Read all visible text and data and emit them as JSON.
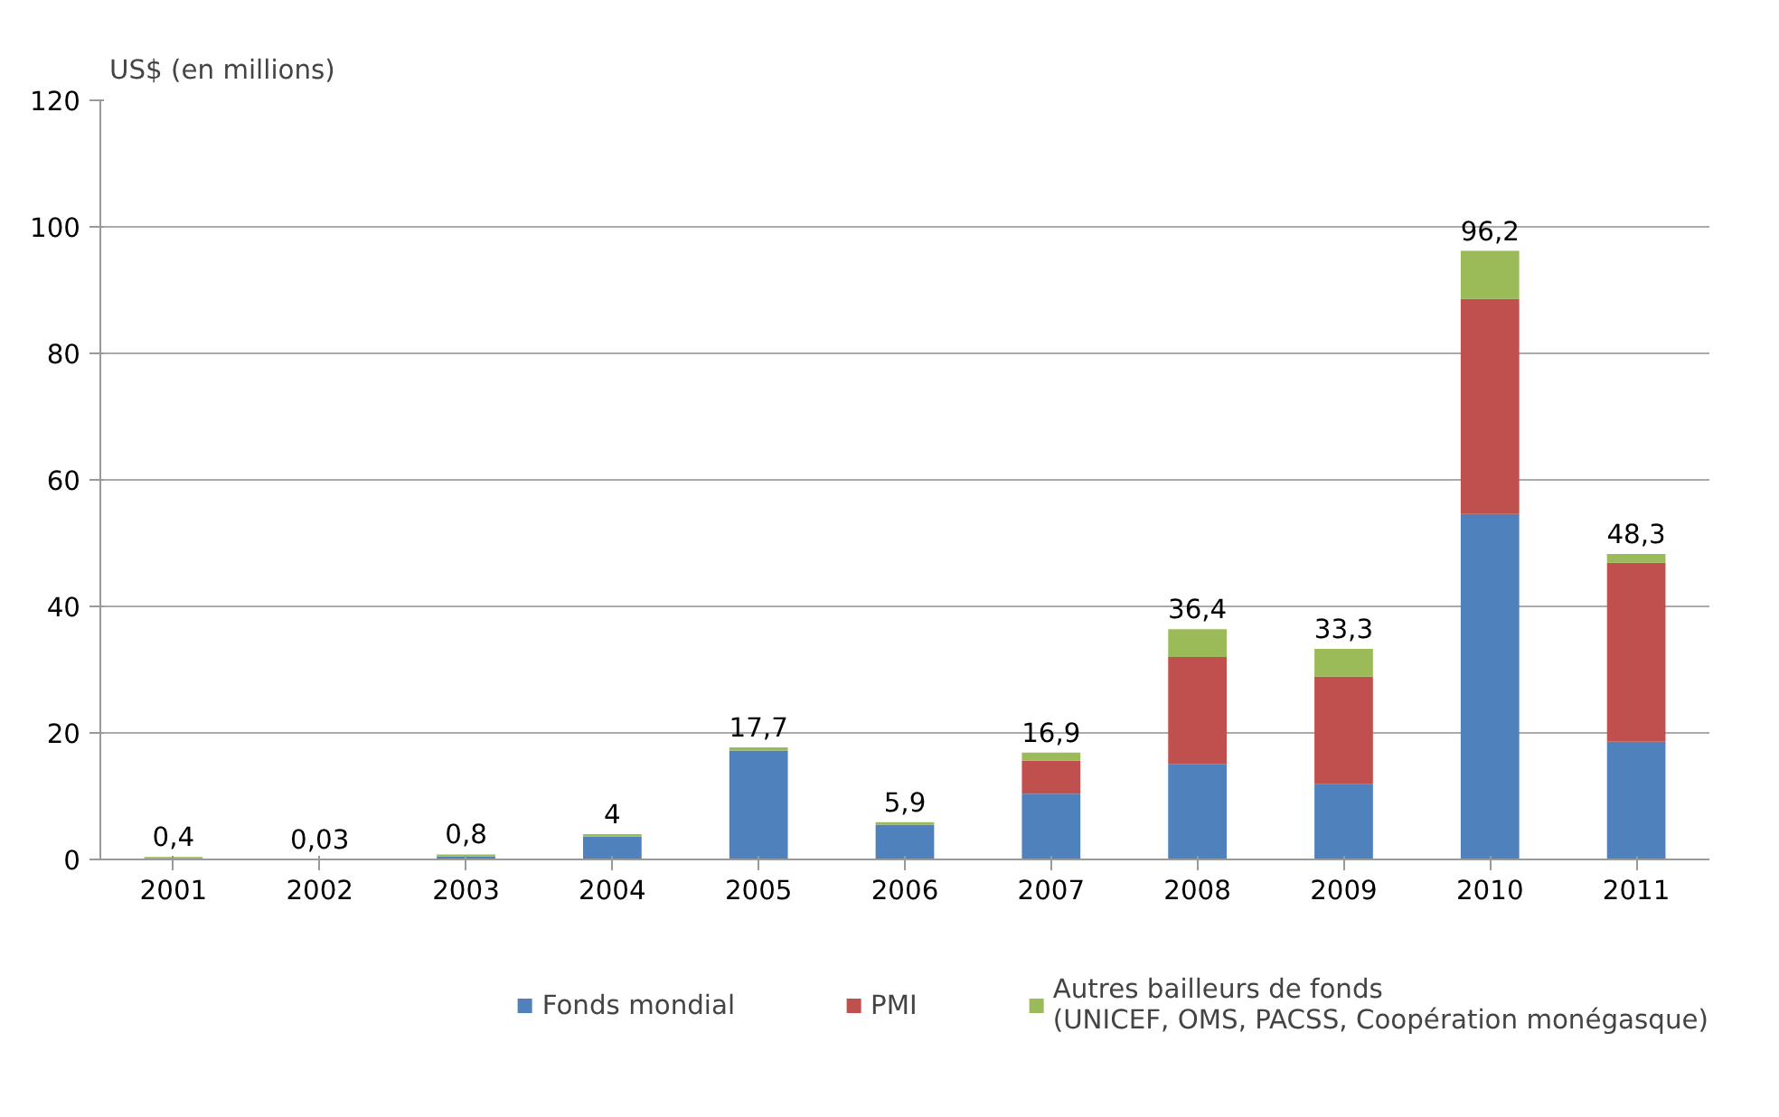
{
  "chart_data": {
    "type": "bar",
    "stacked": true,
    "ylabel": "US$ (en millions)",
    "categories": [
      "2001",
      "2002",
      "2003",
      "2004",
      "2005",
      "2006",
      "2007",
      "2008",
      "2009",
      "2010",
      "2011"
    ],
    "series": [
      {
        "name": "Fonds mondial",
        "color": "#4f81bd",
        "values": [
          0,
          0,
          0.5,
          3.6,
          17.2,
          5.5,
          10.4,
          15.1,
          11.9,
          54.6,
          18.6
        ]
      },
      {
        "name": "PMI",
        "color": "#c0504d",
        "values": [
          0,
          0,
          0,
          0,
          0,
          0,
          5.2,
          16.9,
          17.0,
          34.0,
          28.3
        ]
      },
      {
        "name": "Autres bailleurs de fonds\n(UNICEF, OMS, PACSS, Coopération monégasque)",
        "color": "#9bbb59",
        "values": [
          0.4,
          0.03,
          0.3,
          0.4,
          0.5,
          0.4,
          1.3,
          4.4,
          4.4,
          7.6,
          1.4
        ]
      }
    ],
    "totals": [
      "0,4",
      "0,03",
      "0,8",
      "4",
      "17,7",
      "5,9",
      "16,9",
      "36,4",
      "33,3",
      "96,2",
      "48,3"
    ],
    "ylim": [
      0,
      120
    ],
    "yticks": [
      0,
      20,
      40,
      60,
      80,
      100,
      120
    ],
    "grid": "y",
    "legend": "bottom"
  }
}
